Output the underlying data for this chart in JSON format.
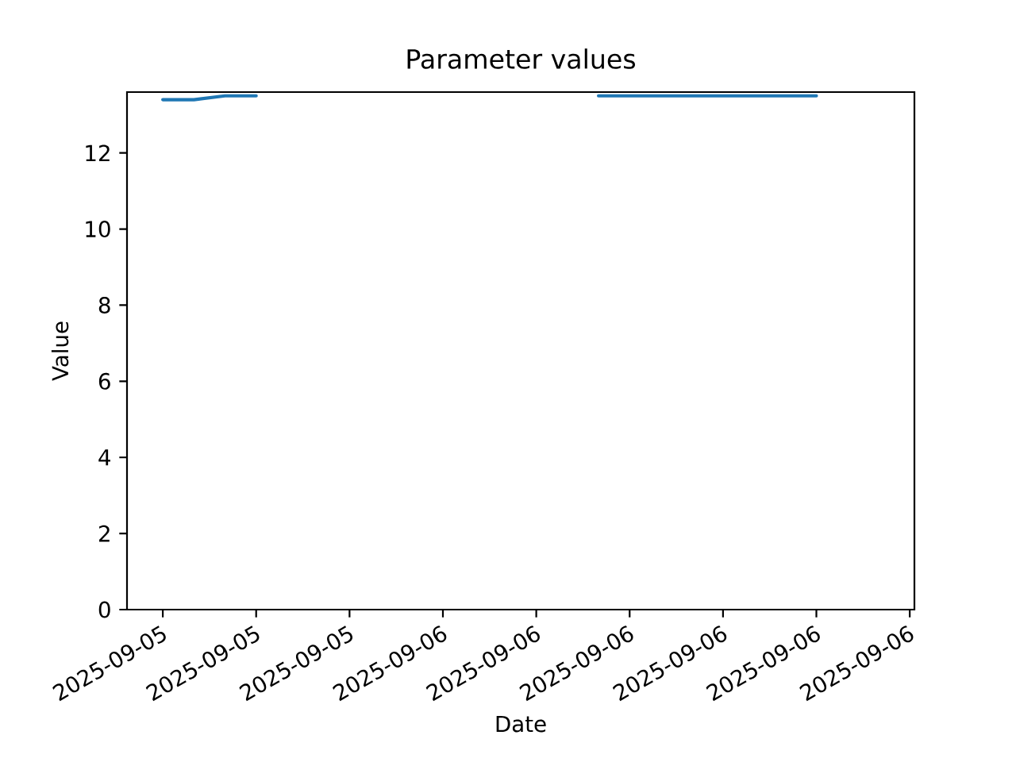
{
  "chart_data": {
    "type": "line",
    "title": "Parameter values",
    "xlabel": "Date",
    "ylabel": "Value",
    "x": [
      "2025-09-05T15:00",
      "2025-09-05T16:00",
      "2025-09-05T17:00",
      "2025-09-05T18:00",
      "2025-09-05T19:00",
      "2025-09-05T20:00",
      "2025-09-05T21:00",
      "2025-09-05T22:00",
      "2025-09-05T23:00",
      "2025-09-06T00:00",
      "2025-09-06T01:00",
      "2025-09-06T02:00",
      "2025-09-06T03:00",
      "2025-09-06T04:00",
      "2025-09-06T05:00",
      "2025-09-06T06:00",
      "2025-09-06T07:00",
      "2025-09-06T08:00",
      "2025-09-06T09:00",
      "2025-09-06T10:00",
      "2025-09-06T11:00",
      "2025-09-06T12:00"
    ],
    "series": [
      {
        "color": "#1f77b4",
        "values": [
          13.4,
          13.4,
          13.5,
          13.5,
          null,
          null,
          null,
          null,
          null,
          null,
          null,
          null,
          null,
          null,
          13.5,
          13.5,
          13.5,
          13.5,
          13.5,
          13.5,
          13.5,
          13.5
        ]
      }
    ],
    "xlim": [
      "2025-09-05T13:51",
      "2025-09-06T15:09"
    ],
    "ylim": [
      0,
      13.6
    ],
    "xticks": [
      {
        "value": "2025-09-05T15:00",
        "label": "2025-09-05"
      },
      {
        "value": "2025-09-05T18:00",
        "label": "2025-09-05"
      },
      {
        "value": "2025-09-05T21:00",
        "label": "2025-09-05"
      },
      {
        "value": "2025-09-06T00:00",
        "label": "2025-09-06"
      },
      {
        "value": "2025-09-06T03:00",
        "label": "2025-09-06"
      },
      {
        "value": "2025-09-06T06:00",
        "label": "2025-09-06"
      },
      {
        "value": "2025-09-06T09:00",
        "label": "2025-09-06"
      },
      {
        "value": "2025-09-06T12:00",
        "label": "2025-09-06"
      },
      {
        "value": "2025-09-06T15:00",
        "label": "2025-09-06"
      }
    ],
    "yticks": [
      0,
      2,
      4,
      6,
      8,
      10,
      12
    ],
    "grid": false,
    "marker": "none",
    "line_style": "solid"
  }
}
